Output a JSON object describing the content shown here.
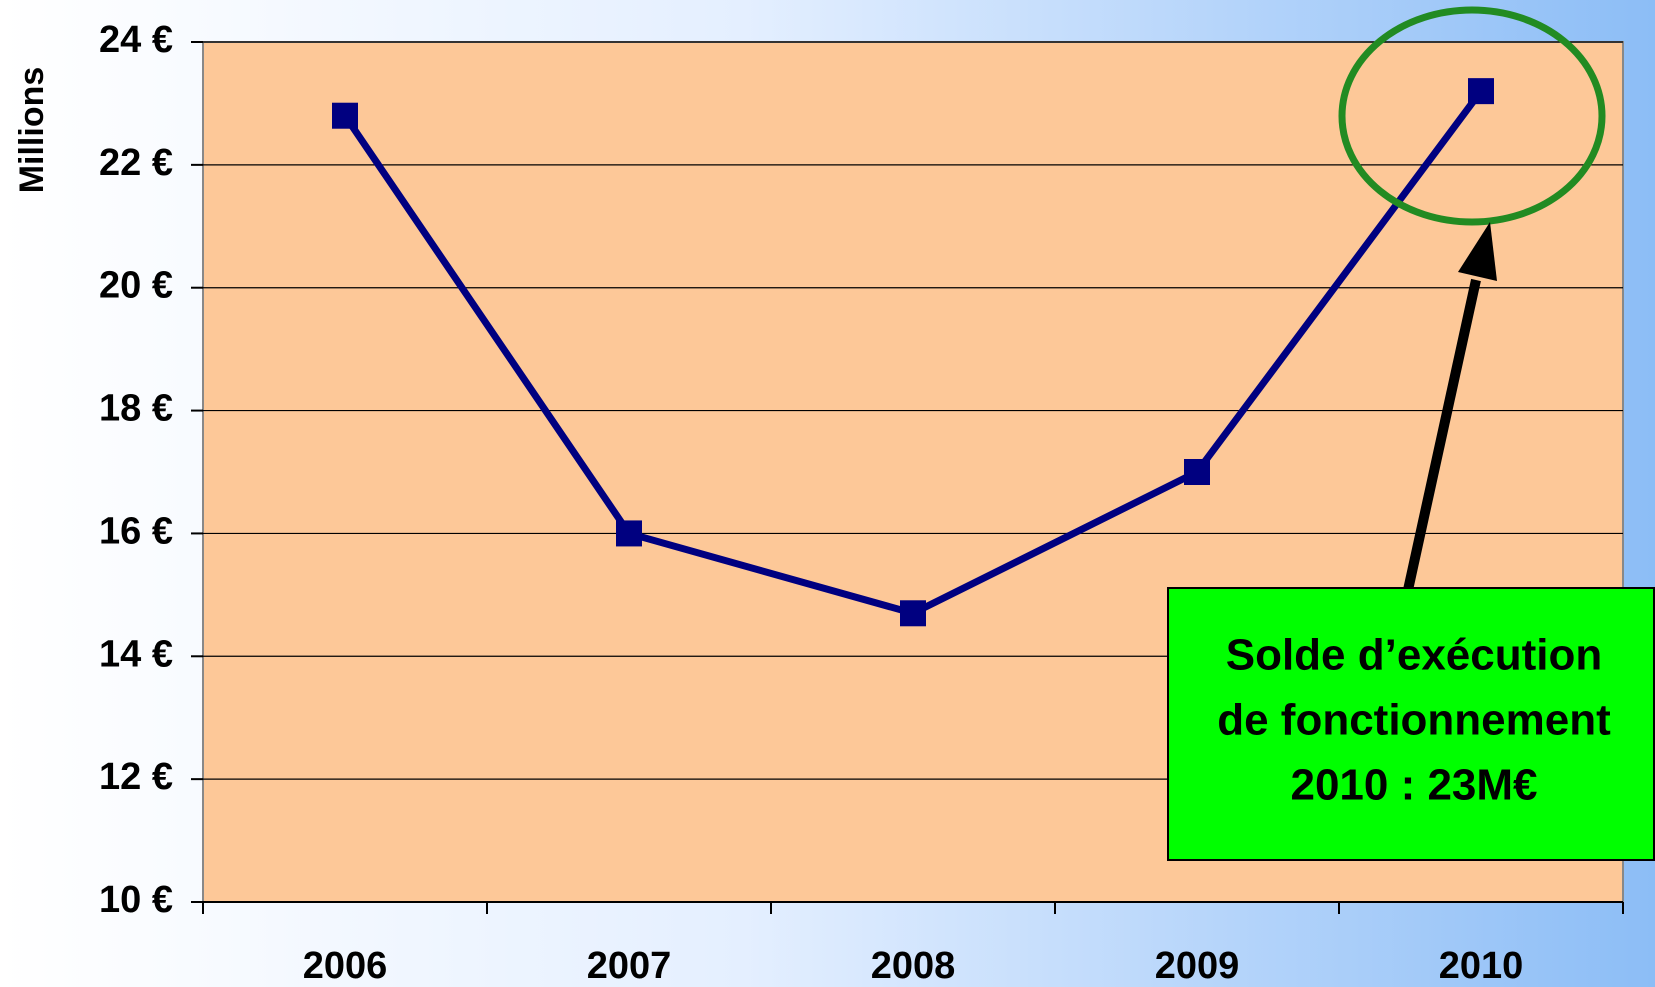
{
  "chart_data": {
    "type": "line",
    "ylabel": "Millions",
    "categories": [
      "2006",
      "2007",
      "2008",
      "2009",
      "2010"
    ],
    "series": [
      {
        "name": "Solde",
        "color": "#000080",
        "values": [
          22.8,
          16.0,
          14.7,
          17.0,
          23.2
        ]
      }
    ],
    "ylim": [
      10,
      24
    ],
    "yticks": [
      {
        "value": 10,
        "label": "10 €"
      },
      {
        "value": 12,
        "label": "12 €"
      },
      {
        "value": 14,
        "label": "14 €"
      },
      {
        "value": 16,
        "label": "16 €"
      },
      {
        "value": 18,
        "label": "18 €"
      },
      {
        "value": 20,
        "label": "20 €"
      },
      {
        "value": 22,
        "label": "22 €"
      },
      {
        "value": 24,
        "label": "24 €"
      }
    ],
    "grid": true,
    "annotation": [
      "Solde d’exécution",
      "de fonctionnement",
      "2010 : 23M€"
    ]
  }
}
